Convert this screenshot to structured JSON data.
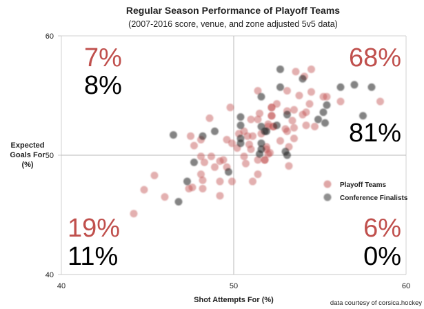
{
  "chart_data": {
    "type": "scatter",
    "title": "Regular Season Performance of Playoff Teams",
    "subtitle": "(2007-2016 score, venue, and zone adjusted 5v5 data)",
    "xlabel": "Shot Attempts For (%)",
    "ylabel": [
      "Expected",
      "Goals For",
      "(%)"
    ],
    "xlim": [
      40,
      60
    ],
    "ylim": [
      40,
      60
    ],
    "xticks": [
      "40",
      "50",
      "60"
    ],
    "yticks": [
      "40",
      "50",
      "60"
    ],
    "grid": "reference lines at x=50 and y=50",
    "legend_placement": "right",
    "credit": "data courtesy of corsica.hockey",
    "colors": {
      "playoff": "#c0504d",
      "finalists": "#222222"
    },
    "quadrants": {
      "top_left": {
        "playoff": "7%",
        "finalists": "8%"
      },
      "top_right": {
        "playoff": "68%",
        "finalists": "81%"
      },
      "bottom_left": {
        "playoff": "19%",
        "finalists": "11%"
      },
      "bottom_right": {
        "playoff": "6%",
        "finalists": "0%"
      }
    },
    "series": [
      {
        "name": "Playoff Teams",
        "points": [
          [
            51.4,
            55.4
          ],
          [
            49.8,
            54.0
          ],
          [
            48.6,
            53.1
          ],
          [
            47.5,
            51.6
          ],
          [
            47.7,
            50.8
          ],
          [
            48.1,
            51.3
          ],
          [
            49.6,
            51.3
          ],
          [
            49.9,
            51.0
          ],
          [
            48.1,
            49.9
          ],
          [
            48.3,
            49.4
          ],
          [
            48.7,
            49.9
          ],
          [
            48.9,
            49.0
          ],
          [
            49.2,
            49.5
          ],
          [
            49.4,
            49.6
          ],
          [
            49.6,
            49.0
          ],
          [
            48.1,
            48.4
          ],
          [
            48.2,
            47.9
          ],
          [
            49.2,
            47.8
          ],
          [
            49.9,
            47.8
          ],
          [
            47.6,
            47.3
          ],
          [
            47.4,
            47.2
          ],
          [
            48.2,
            47.2
          ],
          [
            49.2,
            46.6
          ],
          [
            46.0,
            46.5
          ],
          [
            45.4,
            48.3
          ],
          [
            44.8,
            47.1
          ],
          [
            44.2,
            45.1
          ],
          [
            51.1,
            47.8
          ],
          [
            51.4,
            48.4
          ],
          [
            50.6,
            49.9
          ],
          [
            50.7,
            49.3
          ],
          [
            51.4,
            49.6
          ],
          [
            51.8,
            49.6
          ],
          [
            51.0,
            50.5
          ],
          [
            50.8,
            51.6
          ],
          [
            51.1,
            51.6
          ],
          [
            50.6,
            52.0
          ],
          [
            51.0,
            53.0
          ],
          [
            51.4,
            53.0
          ],
          [
            51.5,
            53.5
          ],
          [
            52.2,
            54.0
          ],
          [
            52.2,
            53.3
          ],
          [
            52.0,
            52.6
          ],
          [
            52.3,
            52.4
          ],
          [
            51.9,
            50.7
          ],
          [
            52.1,
            50.2
          ],
          [
            53.6,
            57.0
          ],
          [
            54.5,
            57.2
          ],
          [
            54.1,
            56.6
          ],
          [
            53.1,
            55.4
          ],
          [
            53.8,
            55.0
          ],
          [
            54.5,
            55.3
          ],
          [
            55.2,
            54.9
          ],
          [
            55.4,
            54.9
          ],
          [
            56.2,
            54.5
          ],
          [
            54.4,
            54.3
          ],
          [
            52.5,
            54.3
          ],
          [
            52.2,
            54.0
          ],
          [
            53.1,
            53.7
          ],
          [
            53.5,
            53.8
          ],
          [
            54.0,
            53.4
          ],
          [
            54.2,
            53.6
          ],
          [
            52.2,
            53.3
          ],
          [
            53.4,
            52.9
          ],
          [
            52.0,
            52.4
          ],
          [
            52.3,
            52.4
          ],
          [
            53.0,
            52.2
          ],
          [
            53.1,
            52.0
          ],
          [
            53.5,
            52.3
          ],
          [
            54.2,
            52.5
          ],
          [
            54.7,
            52.4
          ],
          [
            53.5,
            51.4
          ],
          [
            53.2,
            50.7
          ],
          [
            51.9,
            50.5
          ],
          [
            52.0,
            50.1
          ],
          [
            51.8,
            49.6
          ],
          [
            53.2,
            49.1
          ],
          [
            58.5,
            54.5
          ],
          [
            50.3,
            51.8
          ],
          [
            50.9,
            50.9
          ],
          [
            51.6,
            51.8
          ],
          [
            52.7,
            51.2
          ],
          [
            50.2,
            50.6
          ]
        ]
      },
      {
        "name": "Conference Finalists",
        "points": [
          [
            46.5,
            51.7
          ],
          [
            48.2,
            51.6
          ],
          [
            48.9,
            52.0
          ],
          [
            47.7,
            49.4
          ],
          [
            47.3,
            47.8
          ],
          [
            46.8,
            46.1
          ],
          [
            49.7,
            48.6
          ],
          [
            50.4,
            53.2
          ],
          [
            50.4,
            52.5
          ],
          [
            50.4,
            51.4
          ],
          [
            50.4,
            51.0
          ],
          [
            51.6,
            54.9
          ],
          [
            51.6,
            52.4
          ],
          [
            51.9,
            52.0
          ],
          [
            51.6,
            51.0
          ],
          [
            51.6,
            50.5
          ],
          [
            51.5,
            50.1
          ],
          [
            52.7,
            57.2
          ],
          [
            54.0,
            56.4
          ],
          [
            52.7,
            55.7
          ],
          [
            53.1,
            53.4
          ],
          [
            52.5,
            52.5
          ],
          [
            51.8,
            52.0
          ],
          [
            55.4,
            54.2
          ],
          [
            55.2,
            53.6
          ],
          [
            54.9,
            53.0
          ],
          [
            55.3,
            52.7
          ],
          [
            56.2,
            55.7
          ],
          [
            57.0,
            55.9
          ],
          [
            58.0,
            55.7
          ],
          [
            57.5,
            53.3
          ],
          [
            53.0,
            50.3
          ],
          [
            53.1,
            50.0
          ]
        ]
      }
    ]
  }
}
